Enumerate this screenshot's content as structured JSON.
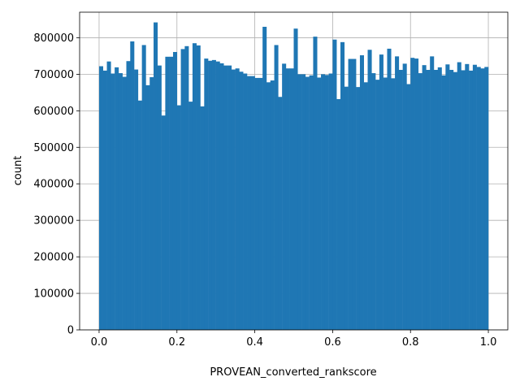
{
  "chart_data": {
    "type": "bar",
    "title": "",
    "xlabel": "PROVEAN_converted_rankscore",
    "ylabel": "count",
    "xlim": [
      -0.05,
      1.05
    ],
    "ylim": [
      0,
      870000
    ],
    "xticks": [
      0.0,
      0.2,
      0.4,
      0.6,
      0.8,
      1.0
    ],
    "xtick_labels": [
      "0.0",
      "0.2",
      "0.4",
      "0.6",
      "0.8",
      "1.0"
    ],
    "yticks": [
      0,
      100000,
      200000,
      300000,
      400000,
      500000,
      600000,
      700000,
      800000
    ],
    "ytick_labels": [
      "0",
      "100000",
      "200000",
      "300000",
      "400000",
      "500000",
      "600000",
      "700000",
      "800000"
    ],
    "grid": true,
    "bar_color": "#1f77b4",
    "bins": {
      "start": 0.0,
      "width": 0.01,
      "counts": [
        722000,
        710000,
        735000,
        702000,
        719000,
        703000,
        693000,
        736000,
        790000,
        713000,
        628000,
        780000,
        670000,
        692000,
        842000,
        724000,
        587000,
        748000,
        748000,
        761000,
        615000,
        769000,
        777000,
        625000,
        785000,
        779000,
        612000,
        743000,
        737000,
        739000,
        735000,
        730000,
        724000,
        724000,
        713000,
        716000,
        707000,
        702000,
        695000,
        695000,
        690000,
        690000,
        830000,
        678000,
        683000,
        780000,
        638000,
        729000,
        716000,
        716000,
        825000,
        700000,
        700000,
        693000,
        697000,
        803000,
        691000,
        700000,
        698000,
        702000,
        795000,
        632000,
        788000,
        666000,
        742000,
        742000,
        665000,
        752000,
        678000,
        767000,
        703000,
        685000,
        754000,
        691000,
        770000,
        689000,
        749000,
        712000,
        729000,
        673000,
        745000,
        743000,
        703000,
        725000,
        712000,
        749000,
        712000,
        719000,
        697000,
        727000,
        712000,
        706000,
        733000,
        711000,
        728000,
        710000,
        726000,
        720000,
        716000,
        720000
      ]
    }
  }
}
